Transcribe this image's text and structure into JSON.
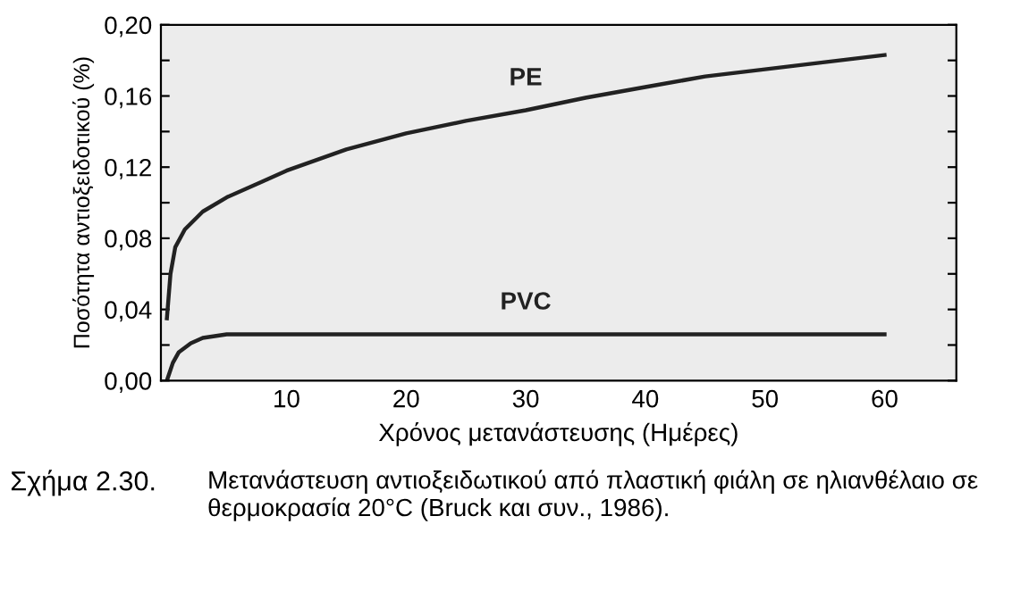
{
  "chart_data": {
    "type": "line",
    "xlabel": "Χρόνος μετανάστευσης (Ημέρες)",
    "ylabel": "Ποσότητα αντιοξειδοτικού (%)",
    "series": [
      {
        "name": "PE",
        "color": "#222222",
        "x": [
          0,
          0.3,
          0.7,
          1.5,
          3,
          5,
          8,
          10,
          15,
          20,
          25,
          30,
          35,
          40,
          45,
          50,
          55,
          60
        ],
        "values": [
          0.035,
          0.06,
          0.075,
          0.085,
          0.095,
          0.103,
          0.112,
          0.118,
          0.13,
          0.139,
          0.146,
          0.152,
          0.159,
          0.165,
          0.171,
          0.175,
          0.179,
          0.183
        ]
      },
      {
        "name": "PVC",
        "color": "#222222",
        "x": [
          0,
          0.5,
          1,
          2,
          3,
          5,
          10,
          20,
          30,
          40,
          50,
          60
        ],
        "values": [
          0,
          0.01,
          0.016,
          0.021,
          0.024,
          0.026,
          0.026,
          0.026,
          0.026,
          0.026,
          0.026,
          0.026
        ]
      }
    ],
    "xlim": [
      -0.5,
      66
    ],
    "xticks": [
      10,
      20,
      30,
      40,
      50,
      60
    ],
    "ylim": [
      0,
      0.2
    ],
    "yticks": [
      {
        "value": 0,
        "label": "0,00"
      },
      {
        "value": 0.02,
        "label": null
      },
      {
        "value": 0.04,
        "label": "0,04"
      },
      {
        "value": 0.06,
        "label": null
      },
      {
        "value": 0.08,
        "label": "0,08"
      },
      {
        "value": 0.1,
        "label": null
      },
      {
        "value": 0.12,
        "label": "0,12"
      },
      {
        "value": 0.14,
        "label": null
      },
      {
        "value": 0.16,
        "label": "0,16"
      },
      {
        "value": 0.18,
        "label": null
      },
      {
        "value": 0.2,
        "label": "0,20"
      }
    ],
    "grid": false,
    "legend": false,
    "marker": "none",
    "line_style": "solid",
    "annotations": [
      "Σχήμα 2.30.",
      "Μετανάστευση αντιοξειδωτικού από πλαστική φιάλη σε ηλιανθέλαιο σε θερμοκρασία 20°C (Bruck και συν., 1986)."
    ]
  }
}
